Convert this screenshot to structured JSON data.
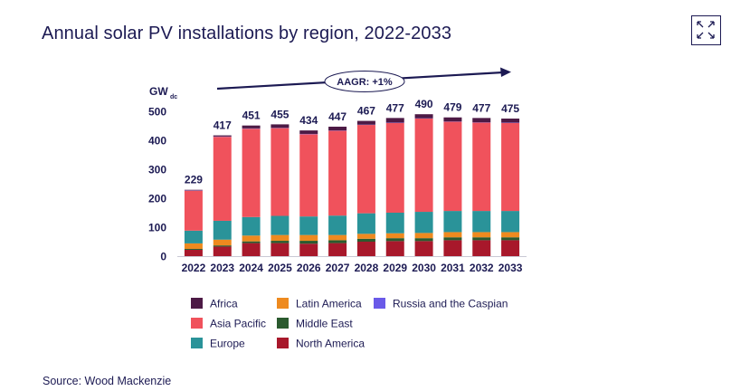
{
  "title": "Annual solar PV installations by region, 2022-2033",
  "source": "Source: Wood Mackenzie",
  "expand_icon": "expand-arrows-icon",
  "colors": {
    "text": "#1c1a53",
    "Africa": "#4d1a45",
    "Asia Pacific": "#f0525c",
    "Europe": "#2a9399",
    "Latin America": "#ee8a1f",
    "Middle East": "#2b5a2e",
    "North America": "#a8182b",
    "Russia and the Caspian": "#6a5ae8"
  },
  "chart_data": {
    "type": "bar",
    "stacked": true,
    "ylabel": "GW",
    "ylabel_subscript": "dc",
    "ylim": [
      0,
      500
    ],
    "yticks": [
      0,
      100,
      200,
      300,
      400,
      500
    ],
    "categories": [
      "2022",
      "2023",
      "2024",
      "2025",
      "2026",
      "2027",
      "2028",
      "2029",
      "2030",
      "2031",
      "2032",
      "2033"
    ],
    "totals": [
      229,
      417,
      451,
      455,
      434,
      447,
      467,
      477,
      490,
      479,
      477,
      475
    ],
    "annotation": "AAGR: +1%",
    "legend_order": [
      "Africa",
      "Latin America",
      "Russia and the Caspian",
      "Asia Pacific",
      "Middle East",
      "Europe",
      "North America"
    ],
    "series": [
      {
        "name": "North America",
        "values": [
          22,
          33,
          45,
          45,
          43,
          45,
          50,
          52,
          52,
          55,
          55,
          55
        ]
      },
      {
        "name": "Middle East",
        "values": [
          3,
          4,
          6,
          8,
          10,
          10,
          10,
          10,
          10,
          10,
          10,
          10
        ]
      },
      {
        "name": "Latin America",
        "values": [
          19,
          20,
          20,
          20,
          20,
          18,
          17,
          17,
          18,
          18,
          18,
          18
        ]
      },
      {
        "name": "Europe",
        "values": [
          44,
          65,
          64,
          66,
          64,
          67,
          71,
          71,
          73,
          73,
          73,
          73
        ]
      },
      {
        "name": "Asia Pacific",
        "values": [
          138,
          290,
          305,
          303,
          284,
          293,
          305,
          310,
          322,
          308,
          305,
          304
        ]
      },
      {
        "name": "Russia and the Caspian",
        "values": [
          1,
          1,
          1,
          1,
          1,
          1,
          1,
          1,
          1,
          1,
          1,
          1
        ]
      },
      {
        "name": "Africa",
        "values": [
          2,
          4,
          10,
          12,
          12,
          13,
          13,
          16,
          14,
          14,
          15,
          14
        ]
      }
    ]
  }
}
